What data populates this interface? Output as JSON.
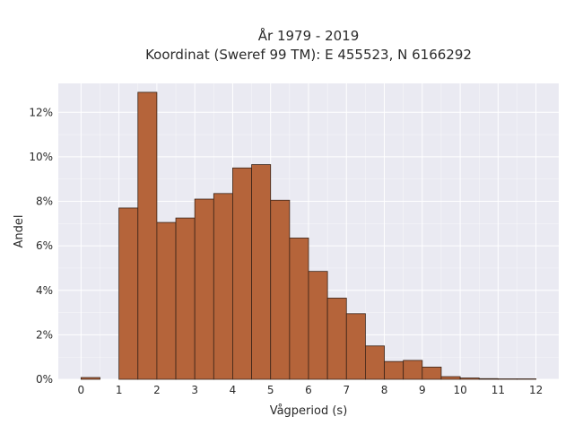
{
  "chart_data": {
    "type": "bar",
    "title": [
      "År 1979 - 2019",
      "Koordinat (Sweref 99 TM): E 455523, N 6166292"
    ],
    "xlabel": "Vågperiod (s)",
    "ylabel": "Andel",
    "bin_width": 0.5,
    "xlim": [
      -0.6,
      12.6
    ],
    "ylim": [
      0,
      13.3
    ],
    "xticks": [
      0,
      1,
      2,
      3,
      4,
      5,
      6,
      7,
      8,
      9,
      10,
      11,
      12
    ],
    "yticks": [
      0,
      2,
      4,
      6,
      8,
      10,
      12
    ],
    "ytick_suffix": "%",
    "grid": true,
    "bar_color": "#b5643a",
    "bar_edge_color": "#3a2418",
    "background_color": "#eaeaf2",
    "bins": [
      {
        "x0": 0.0,
        "value": 0.08
      },
      {
        "x0": 1.0,
        "value": 7.7
      },
      {
        "x0": 1.5,
        "value": 12.9
      },
      {
        "x0": 2.0,
        "value": 7.05
      },
      {
        "x0": 2.5,
        "value": 7.25
      },
      {
        "x0": 3.0,
        "value": 8.1
      },
      {
        "x0": 3.5,
        "value": 8.35
      },
      {
        "x0": 4.0,
        "value": 9.5
      },
      {
        "x0": 4.5,
        "value": 9.65
      },
      {
        "x0": 5.0,
        "value": 8.05
      },
      {
        "x0": 5.5,
        "value": 6.35
      },
      {
        "x0": 6.0,
        "value": 4.85
      },
      {
        "x0": 6.5,
        "value": 3.65
      },
      {
        "x0": 7.0,
        "value": 2.95
      },
      {
        "x0": 7.5,
        "value": 1.5
      },
      {
        "x0": 8.0,
        "value": 0.8
      },
      {
        "x0": 8.5,
        "value": 0.85
      },
      {
        "x0": 9.0,
        "value": 0.55
      },
      {
        "x0": 9.5,
        "value": 0.12
      },
      {
        "x0": 10.0,
        "value": 0.06
      },
      {
        "x0": 10.5,
        "value": 0.03
      },
      {
        "x0": 11.0,
        "value": 0.02
      },
      {
        "x0": 11.5,
        "value": 0.02
      }
    ]
  }
}
